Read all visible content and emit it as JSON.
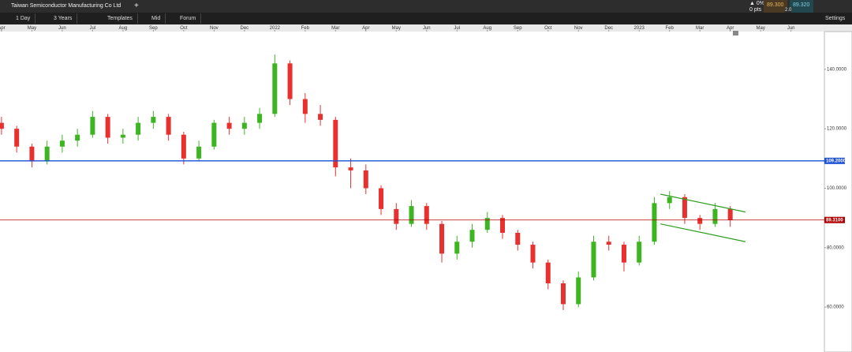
{
  "header": {
    "title": "Taiwan Semiconductor Manufacturing Co Ltd",
    "change": "▲ 0%",
    "pts": "0 pts",
    "bid": "89.300",
    "ask": "89.320",
    "spread": "2.0",
    "settings": "Settings"
  },
  "toolbar": [
    "1 Day",
    "3 Years",
    "Templates",
    "Mid",
    "Forum"
  ],
  "chart_data": {
    "type": "candlestick",
    "xlim": [
      -0.05,
      27.1
    ],
    "xticks": [
      {
        "value": 0,
        "label": "Apr"
      },
      {
        "value": 1,
        "label": "May"
      },
      {
        "value": 2,
        "label": "Jun"
      },
      {
        "value": 3,
        "label": "Jul"
      },
      {
        "value": 4,
        "label": "Aug"
      },
      {
        "value": 5,
        "label": "Sep"
      },
      {
        "value": 6,
        "label": "Oct"
      },
      {
        "value": 7,
        "label": "Nov"
      },
      {
        "value": 8,
        "label": "Dec"
      },
      {
        "value": 9,
        "label": "2022"
      },
      {
        "value": 10,
        "label": "Feb"
      },
      {
        "value": 11,
        "label": "Mar"
      },
      {
        "value": 12,
        "label": "Apr"
      },
      {
        "value": 13,
        "label": "May"
      },
      {
        "value": 14,
        "label": "Jun"
      },
      {
        "value": 15,
        "label": "Jul"
      },
      {
        "value": 16,
        "label": "Aug"
      },
      {
        "value": 17,
        "label": "Sep"
      },
      {
        "value": 18,
        "label": "Oct"
      },
      {
        "value": 19,
        "label": "Nov"
      },
      {
        "value": 20,
        "label": "Dec"
      },
      {
        "value": 21,
        "label": "2023"
      },
      {
        "value": 22,
        "label": "Feb"
      },
      {
        "value": 23,
        "label": "Mar"
      },
      {
        "value": 24,
        "label": "Apr"
      },
      {
        "value": 25,
        "label": "May"
      },
      {
        "value": 26,
        "label": "Jun"
      }
    ],
    "ylim": [
      44.9,
      152.7
    ],
    "yticks": [
      {
        "value": 60,
        "label": "60.0000"
      },
      {
        "value": 80,
        "label": "80.0000"
      },
      {
        "value": 100,
        "label": "100.0000"
      },
      {
        "value": 120,
        "label": "120.0000"
      },
      {
        "value": 140,
        "label": "140.0000"
      }
    ],
    "up_color": "#3cb521",
    "down_color": "#e8312f",
    "x": [
      0,
      0.5,
      1,
      1.5,
      2,
      2.5,
      3,
      3.5,
      4,
      4.5,
      5,
      5.5,
      6,
      6.5,
      7,
      7.5,
      8,
      8.5,
      9,
      9.5,
      10,
      10.5,
      11,
      11.5,
      12,
      12.5,
      13,
      13.5,
      14,
      14.5,
      15,
      15.5,
      16,
      16.5,
      17,
      17.5,
      18,
      18.5,
      19,
      19.5,
      20,
      20.5,
      21,
      21.5,
      22,
      22.5,
      23,
      23.5,
      24
    ],
    "open": [
      122,
      120,
      114,
      109,
      114,
      116,
      118,
      124,
      117,
      118,
      122,
      124,
      118,
      110,
      114,
      122,
      120,
      122,
      125,
      142,
      130,
      125,
      123,
      107,
      106,
      100,
      93,
      88,
      94,
      88,
      78,
      82,
      86,
      90,
      85,
      81,
      75,
      68,
      61,
      70,
      82,
      81,
      75,
      82,
      95,
      97,
      90,
      88,
      93
    ],
    "high": [
      124,
      121,
      115,
      116,
      118,
      120,
      126,
      125,
      120,
      124,
      126,
      125,
      119,
      116,
      123,
      124,
      124,
      127,
      145,
      143,
      132,
      128,
      124,
      110,
      108,
      101,
      95,
      96,
      95,
      89,
      84,
      88,
      92,
      91,
      86,
      82,
      76,
      69,
      72,
      84,
      84,
      82,
      84,
      97,
      99,
      98,
      91,
      95,
      94
    ],
    "low": [
      118,
      112,
      107,
      108,
      112,
      114,
      117,
      115,
      115,
      116,
      120,
      116,
      108,
      109,
      113,
      118,
      118,
      120,
      124,
      128,
      122,
      121,
      104,
      100,
      98,
      91,
      86,
      87,
      86,
      75,
      76,
      80,
      85,
      83,
      79,
      73,
      66,
      59,
      60,
      69,
      79,
      72,
      74,
      81,
      93,
      88,
      86,
      87,
      87
    ],
    "close": [
      120,
      114,
      109,
      114,
      116,
      118,
      124,
      117,
      118,
      122,
      124,
      118,
      110,
      114,
      122,
      120,
      122,
      125,
      142,
      130,
      125,
      123,
      107,
      106,
      100,
      93,
      88,
      94,
      88,
      78,
      82,
      86,
      90,
      85,
      81,
      75,
      68,
      61,
      70,
      82,
      81,
      75,
      82,
      95,
      97,
      90,
      88,
      93,
      89.3
    ],
    "hlines": [
      {
        "value": 109.2,
        "label": "109.2000",
        "color": "#1a4fd6"
      },
      {
        "value": 89.31,
        "label": "89.3100",
        "color": "#b00000"
      }
    ],
    "trendlines": [
      {
        "x": [
          21.7,
          24.5
        ],
        "y": [
          98,
          92
        ],
        "color": "#2e9e1f"
      },
      {
        "x": [
          21.7,
          24.5
        ],
        "y": [
          88,
          82
        ],
        "color": "#2e9e1f"
      }
    ]
  }
}
